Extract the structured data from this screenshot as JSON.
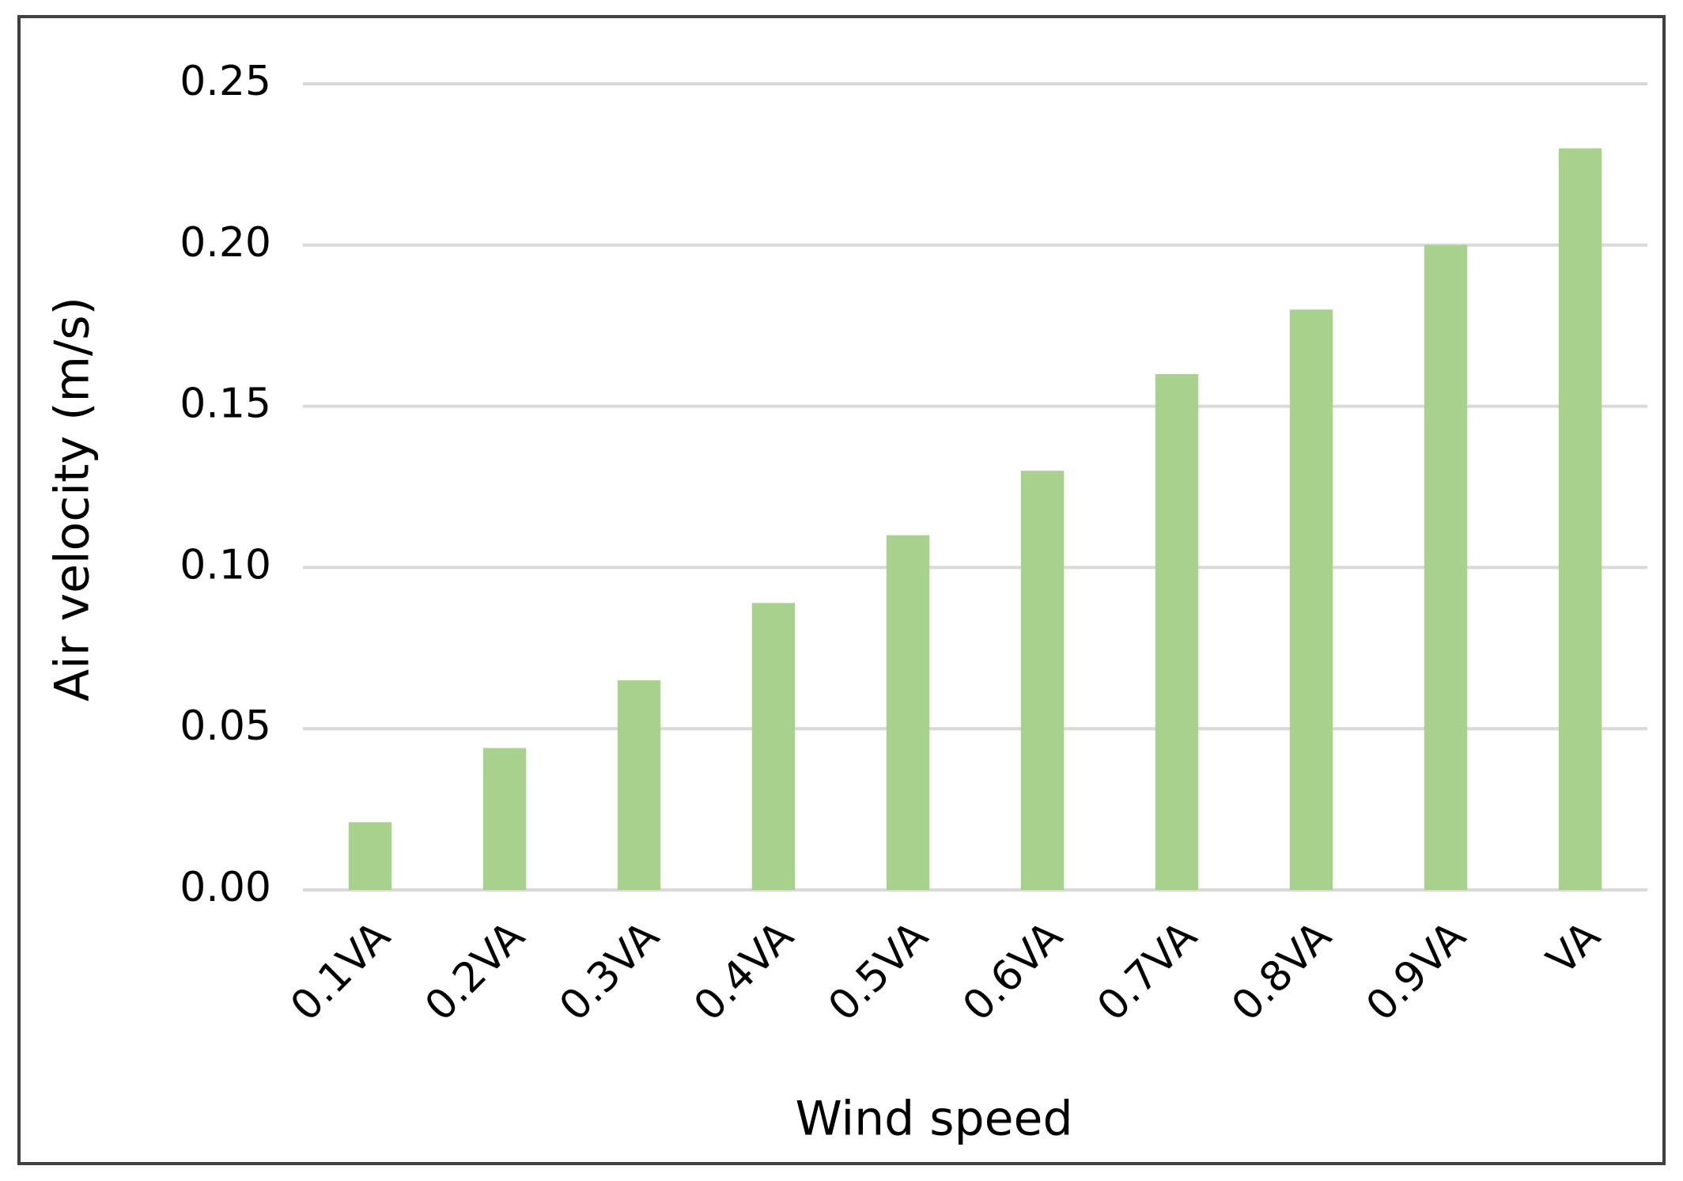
{
  "chart_data": {
    "type": "bar",
    "x_label": "Wind speed",
    "y_label": "Air velocity (m/s)",
    "categories": [
      "0.1VA",
      "0.2VA",
      "0.3VA",
      "0.4VA",
      "0.5VA",
      "0.6VA",
      "0.7VA",
      "0.8VA",
      "0.9VA",
      "VA"
    ],
    "values": [
      0.021,
      0.044,
      0.065,
      0.089,
      0.11,
      0.13,
      0.16,
      0.18,
      0.2,
      0.23
    ],
    "color": "#a9d18e",
    "ylim": [
      0,
      0.25
    ],
    "yticks": [
      {
        "value": 0,
        "label": "0.00"
      },
      0.05,
      {
        "value": 0.1,
        "label": "0.10"
      },
      0.15,
      {
        "value": 0.2,
        "label": "0.20"
      },
      0.25
    ],
    "grid": true
  }
}
